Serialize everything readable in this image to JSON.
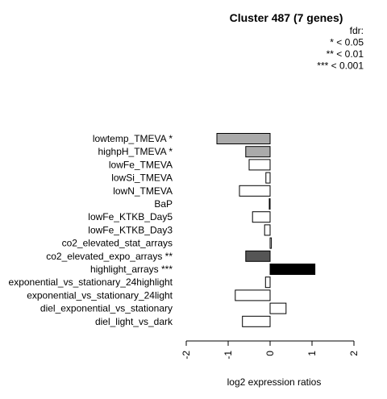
{
  "chart_data": {
    "type": "bar",
    "orientation": "horizontal",
    "title": "Cluster 487 (7 genes)",
    "xlabel": "log2 expression ratios",
    "xlim": [
      -2,
      2
    ],
    "xticks": [
      "-2",
      "-1",
      "0",
      "1",
      "2"
    ],
    "xtick_values": [
      -2,
      -1,
      0,
      1,
      2
    ],
    "legend": {
      "placement": "top-right",
      "lines": [
        "fdr:",
        "* < 0.05",
        "** < 0.01",
        "*** < 0.001"
      ]
    },
    "categories": [
      "lowtemp_TMEVA *",
      "highpH_TMEVA *",
      "lowFe_TMEVA",
      "lowSi_TMEVA",
      "lowN_TMEVA",
      "BaP",
      "lowFe_KTKB_Day5",
      "lowFe_KTKB_Day3",
      "co2_elevated_stat_arrays",
      "co2_elevated_expo_arrays **",
      "highlight_arrays ***",
      "exponential_vs_stationary_24highlight",
      "exponential_vs_stationary_24light",
      "diel_exponential_vs_stationary",
      "diel_light_vs_dark"
    ],
    "values": [
      -1.27,
      -0.58,
      -0.5,
      -0.1,
      -0.73,
      -0.02,
      -0.42,
      -0.13,
      0.03,
      -0.58,
      1.07,
      -0.11,
      -0.83,
      0.38,
      -0.66
    ],
    "bar_colors": [
      "#aaaaaa",
      "#aaaaaa",
      "#ffffff",
      "#ffffff",
      "#ffffff",
      "#ffffff",
      "#ffffff",
      "#ffffff",
      "#ffffff",
      "#555555",
      "#000000",
      "#ffffff",
      "#ffffff",
      "#ffffff",
      "#ffffff"
    ]
  }
}
